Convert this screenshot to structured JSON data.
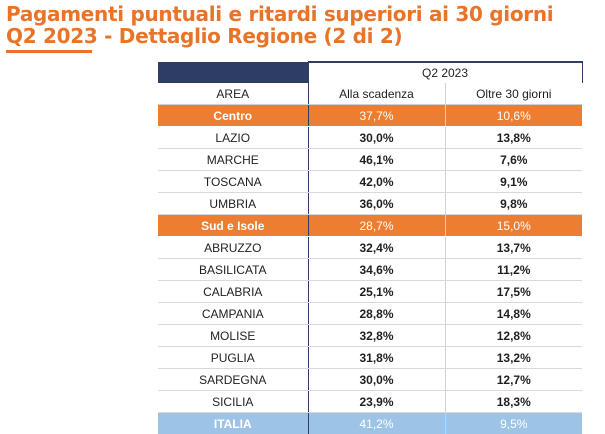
{
  "title_line1": "Pagamenti puntuali e ritardi superiori ai 30 giorni",
  "title_line2": "Q2 2023 - Dettaglio Regione (2 di 2)",
  "colors": {
    "accent": "#e8742a",
    "header": "#2e3d63",
    "group": "#ed7d31",
    "total": "#9dc3e6"
  },
  "table": {
    "period": "Q2 2023",
    "headers": [
      "AREA",
      "Alla scadenza",
      "Oltre 30 giorni"
    ],
    "rows": [
      {
        "type": "group",
        "area": "Centro",
        "on_time": "37,7%",
        "over30": "10,6%"
      },
      {
        "type": "row",
        "area": "LAZIO",
        "on_time": "30,0%",
        "over30": "13,8%"
      },
      {
        "type": "row",
        "area": "MARCHE",
        "on_time": "46,1%",
        "over30": "7,6%"
      },
      {
        "type": "row",
        "area": "TOSCANA",
        "on_time": "42,0%",
        "over30": "9,1%"
      },
      {
        "type": "row",
        "area": "UMBRIA",
        "on_time": "36,0%",
        "over30": "9,8%"
      },
      {
        "type": "group",
        "area": "Sud e Isole",
        "on_time": "28,7%",
        "over30": "15,0%"
      },
      {
        "type": "row",
        "area": "ABRUZZO",
        "on_time": "32,4%",
        "over30": "13,7%"
      },
      {
        "type": "row",
        "area": "BASILICATA",
        "on_time": "34,6%",
        "over30": "11,2%"
      },
      {
        "type": "row",
        "area": "CALABRIA",
        "on_time": "25,1%",
        "over30": "17,5%"
      },
      {
        "type": "row",
        "area": "CAMPANIA",
        "on_time": "28,8%",
        "over30": "14,8%"
      },
      {
        "type": "row",
        "area": "MOLISE",
        "on_time": "32,8%",
        "over30": "12,8%"
      },
      {
        "type": "row",
        "area": "PUGLIA",
        "on_time": "31,8%",
        "over30": "13,2%"
      },
      {
        "type": "row",
        "area": "SARDEGNA",
        "on_time": "30,0%",
        "over30": "12,7%"
      },
      {
        "type": "row",
        "area": "SICILIA",
        "on_time": "23,9%",
        "over30": "18,3%"
      },
      {
        "type": "total",
        "area": "ITALIA",
        "on_time": "41,2%",
        "over30": "9,5%"
      }
    ]
  }
}
